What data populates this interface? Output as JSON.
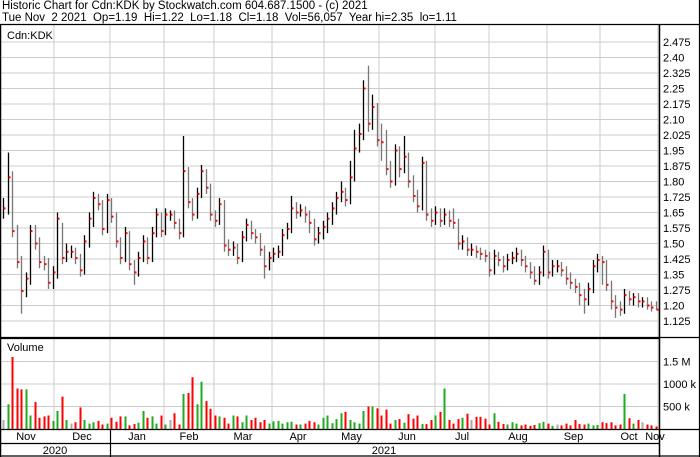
{
  "header": {
    "title": "Historic Chart for Cdn:KDK by Stockwatch.com 604.687.1500 - (c) 2021",
    "quote": "Tue Nov  2 2021  Op=1.19  Hi=1.22  Lo=1.18  Cl=1.18  Vol=56,057  Year hi=2.35  lo=1.11"
  },
  "chart_data": [
    {
      "type": "ohlc",
      "title": "Cdn:KDK",
      "x_range": [
        "2020-11-02",
        "2021-11-02"
      ],
      "ylim": [
        1.1,
        2.5
      ],
      "yticks": [
        "2.475",
        "2.40",
        "2.325",
        "2.25",
        "2.175",
        "2.10",
        "2.025",
        "1.95",
        "1.875",
        "1.80",
        "1.725",
        "1.65",
        "1.575",
        "1.50",
        "1.425",
        "1.35",
        "1.275",
        "1.20",
        "1.125"
      ],
      "grid": true,
      "colors": {
        "close_tick": "#ff0000",
        "bar_up": "#000000",
        "bar_down": "#777777",
        "grid": "#cccccc"
      },
      "close": [
        1.67,
        1.82,
        1.56,
        1.41,
        1.27,
        1.33,
        1.56,
        1.5,
        1.41,
        1.4,
        1.31,
        1.36,
        1.62,
        1.43,
        1.46,
        1.46,
        1.43,
        1.37,
        1.51,
        1.62,
        1.72,
        1.69,
        1.57,
        1.71,
        1.63,
        1.51,
        1.43,
        1.55,
        1.4,
        1.36,
        1.43,
        1.51,
        1.43,
        1.55,
        1.64,
        1.56,
        1.64,
        1.64,
        1.6,
        1.55,
        1.85,
        1.7,
        1.64,
        1.74,
        1.85,
        1.77,
        1.64,
        1.61,
        1.69,
        1.49,
        1.47,
        1.48,
        1.43,
        1.53,
        1.59,
        1.55,
        1.53,
        1.47,
        1.39,
        1.43,
        1.45,
        1.46,
        1.54,
        1.57,
        1.67,
        1.65,
        1.66,
        1.64,
        1.6,
        1.52,
        1.55,
        1.58,
        1.62,
        1.67,
        1.72,
        1.75,
        1.71,
        1.82,
        1.96,
        2.03,
        2.25,
        2.08,
        2.16,
        2.0,
        1.99,
        1.86,
        1.8,
        1.95,
        1.86,
        1.92,
        1.8,
        1.73,
        1.68,
        1.89,
        1.64,
        1.61,
        1.65,
        1.61,
        1.64,
        1.61,
        1.6,
        1.5,
        1.51,
        1.47,
        1.47,
        1.46,
        1.45,
        1.44,
        1.37,
        1.44,
        1.42,
        1.39,
        1.42,
        1.43,
        1.45,
        1.42,
        1.39,
        1.36,
        1.32,
        1.36,
        1.46,
        1.36,
        1.39,
        1.39,
        1.37,
        1.33,
        1.31,
        1.29,
        1.25,
        1.23,
        1.28,
        1.39,
        1.42,
        1.41,
        1.3,
        1.22,
        1.19,
        1.18,
        1.25,
        1.23,
        1.24,
        1.22,
        1.22,
        1.2,
        1.19,
        1.18
      ],
      "high": [
        1.72,
        1.94,
        1.85,
        1.59,
        1.44,
        1.36,
        1.59,
        1.59,
        1.53,
        1.44,
        1.43,
        1.39,
        1.65,
        1.6,
        1.5,
        1.49,
        1.48,
        1.45,
        1.54,
        1.65,
        1.75,
        1.74,
        1.71,
        1.74,
        1.72,
        1.65,
        1.53,
        1.58,
        1.56,
        1.42,
        1.46,
        1.54,
        1.53,
        1.58,
        1.67,
        1.65,
        1.67,
        1.66,
        1.66,
        1.62,
        2.02,
        1.87,
        1.72,
        1.77,
        1.88,
        1.86,
        1.79,
        1.66,
        1.72,
        1.71,
        1.52,
        1.51,
        1.5,
        1.56,
        1.62,
        1.61,
        1.57,
        1.55,
        1.49,
        1.46,
        1.48,
        1.49,
        1.57,
        1.6,
        1.73,
        1.7,
        1.69,
        1.68,
        1.66,
        1.62,
        1.58,
        1.61,
        1.65,
        1.7,
        1.75,
        1.8,
        1.77,
        1.9,
        2.05,
        2.08,
        2.29,
        2.36,
        2.22,
        2.18,
        2.08,
        2.05,
        1.9,
        1.98,
        1.97,
        2.02,
        1.94,
        1.83,
        1.76,
        1.92,
        1.9,
        1.67,
        1.68,
        1.67,
        1.67,
        1.66,
        1.67,
        1.62,
        1.54,
        1.53,
        1.5,
        1.49,
        1.48,
        1.47,
        1.46,
        1.47,
        1.46,
        1.44,
        1.45,
        1.46,
        1.48,
        1.47,
        1.44,
        1.41,
        1.39,
        1.39,
        1.49,
        1.47,
        1.42,
        1.42,
        1.41,
        1.39,
        1.36,
        1.33,
        1.31,
        1.28,
        1.31,
        1.42,
        1.45,
        1.44,
        1.42,
        1.32,
        1.25,
        1.22,
        1.28,
        1.27,
        1.26,
        1.26,
        1.24,
        1.24,
        1.22,
        1.22
      ],
      "low": [
        1.62,
        1.64,
        1.53,
        1.38,
        1.16,
        1.24,
        1.3,
        1.47,
        1.38,
        1.37,
        1.28,
        1.28,
        1.33,
        1.4,
        1.41,
        1.43,
        1.4,
        1.34,
        1.35,
        1.48,
        1.58,
        1.66,
        1.54,
        1.55,
        1.6,
        1.48,
        1.4,
        1.41,
        1.37,
        1.3,
        1.34,
        1.41,
        1.4,
        1.41,
        1.53,
        1.53,
        1.54,
        1.61,
        1.57,
        1.52,
        1.53,
        1.67,
        1.61,
        1.62,
        1.72,
        1.74,
        1.61,
        1.58,
        1.59,
        1.46,
        1.44,
        1.44,
        1.4,
        1.41,
        1.51,
        1.52,
        1.5,
        1.44,
        1.33,
        1.37,
        1.41,
        1.43,
        1.44,
        1.52,
        1.55,
        1.62,
        1.63,
        1.6,
        1.55,
        1.49,
        1.5,
        1.52,
        1.55,
        1.59,
        1.64,
        1.7,
        1.68,
        1.69,
        1.8,
        1.94,
        2.0,
        2.04,
        2.05,
        1.97,
        1.9,
        1.83,
        1.77,
        1.78,
        1.82,
        1.84,
        1.77,
        1.7,
        1.65,
        1.66,
        1.61,
        1.58,
        1.59,
        1.58,
        1.59,
        1.58,
        1.57,
        1.47,
        1.47,
        1.44,
        1.44,
        1.43,
        1.42,
        1.41,
        1.34,
        1.35,
        1.39,
        1.36,
        1.37,
        1.4,
        1.41,
        1.39,
        1.36,
        1.33,
        1.3,
        1.3,
        1.34,
        1.33,
        1.34,
        1.36,
        1.34,
        1.3,
        1.28,
        1.26,
        1.2,
        1.16,
        1.2,
        1.26,
        1.36,
        1.3,
        1.27,
        1.18,
        1.14,
        1.15,
        1.16,
        1.2,
        1.2,
        1.19,
        1.19,
        1.18,
        1.17,
        1.18
      ]
    },
    {
      "type": "bar",
      "title": "Volume",
      "unit": "k",
      "ylim": [
        0,
        1700
      ],
      "yticks": [
        {
          "value": 1500,
          "label": "1.5 M"
        },
        {
          "value": 1000,
          "label": "1000 k"
        },
        {
          "value": 500,
          "label": "500 k"
        }
      ],
      "colors": {
        "up": "#22aa22",
        "down": "#ff0000",
        "flat": "#aaaaaa"
      },
      "values": [
        200,
        550,
        1600,
        900,
        880,
        880,
        300,
        600,
        250,
        280,
        300,
        180,
        400,
        720,
        200,
        120,
        150,
        480,
        200,
        120,
        150,
        180,
        100,
        120,
        250,
        160,
        280,
        280,
        80,
        110,
        140,
        400,
        250,
        280,
        120,
        300,
        100,
        200,
        350,
        100,
        780,
        800,
        1150,
        550,
        1050,
        620,
        450,
        300,
        280,
        250,
        120,
        300,
        280,
        150,
        300,
        200,
        250,
        150,
        200,
        120,
        170,
        180,
        120,
        150,
        160,
        100,
        100,
        120,
        180,
        150,
        100,
        250,
        300,
        130,
        220,
        350,
        380,
        200,
        150,
        120,
        400,
        500,
        500,
        460,
        300,
        430,
        120,
        200,
        220,
        140,
        330,
        230,
        300,
        110,
        110,
        200,
        300,
        380,
        900,
        200,
        120,
        220,
        250,
        340,
        200,
        270,
        270,
        230,
        100,
        350,
        160,
        110,
        100,
        150,
        120,
        80,
        100,
        70,
        90,
        130,
        160,
        120,
        70,
        100,
        80,
        120,
        80,
        200,
        110,
        100,
        120,
        80,
        90,
        150,
        130,
        150,
        80,
        100,
        780,
        240,
        120,
        200,
        150,
        100,
        80,
        56
      ]
    }
  ],
  "x_axis": {
    "months": [
      "Nov",
      "Dec",
      "Jan",
      "Feb",
      "Mar",
      "Apr",
      "May",
      "Jun",
      "Jul",
      "Aug",
      "Sep",
      "Oct",
      "Nov"
    ],
    "years": [
      "2020",
      "2021"
    ]
  }
}
